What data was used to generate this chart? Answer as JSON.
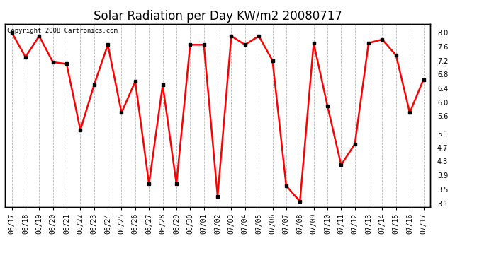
{
  "title": "Solar Radiation per Day KW/m2 20080717",
  "copyright_text": "Copyright 2008 Cartronics.com",
  "dates": [
    "06/17",
    "06/18",
    "06/19",
    "06/20",
    "06/21",
    "06/22",
    "06/23",
    "06/24",
    "06/25",
    "06/26",
    "06/27",
    "06/28",
    "06/29",
    "06/30",
    "07/01",
    "07/02",
    "07/03",
    "07/04",
    "07/05",
    "07/06",
    "07/07",
    "07/08",
    "07/09",
    "07/10",
    "07/11",
    "07/12",
    "07/13",
    "07/14",
    "07/15",
    "07/16",
    "07/17"
  ],
  "values": [
    8.0,
    7.3,
    7.9,
    7.15,
    7.1,
    5.2,
    6.5,
    7.65,
    5.7,
    6.6,
    3.65,
    6.5,
    3.65,
    7.65,
    7.65,
    3.3,
    7.9,
    7.65,
    7.9,
    7.2,
    3.6,
    3.15,
    7.7,
    5.9,
    4.2,
    4.8,
    7.7,
    7.8,
    7.35,
    5.7,
    6.65
  ],
  "line_color": "#FF0000",
  "marker_size": 3,
  "line_width": 1.8,
  "bg_color": "#FFFFFF",
  "plot_bg_color": "#FFFFFF",
  "grid_color": "#BBBBBB",
  "grid_style": "--",
  "ylim": [
    3.0,
    8.25
  ],
  "yticks": [
    3.1,
    3.5,
    3.9,
    4.3,
    4.7,
    5.1,
    5.6,
    6.0,
    6.4,
    6.8,
    7.2,
    7.6,
    8.0
  ],
  "title_fontsize": 12,
  "tick_fontsize": 7,
  "copyright_fontsize": 6.5
}
